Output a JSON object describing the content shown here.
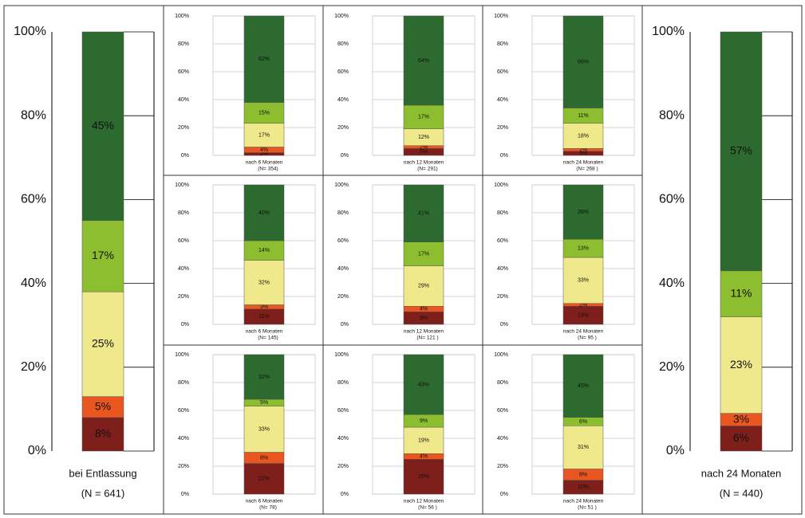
{
  "chart_data": [
    {
      "type": "stacked-bar",
      "categories": [
        "bei Entlassung"
      ],
      "xlabel": "(N = 641)",
      "ylim": [
        0,
        100
      ],
      "yticks": [
        {
          "value": 0,
          "label": "0%"
        },
        {
          "value": 20,
          "label": "20%"
        },
        {
          "value": 40,
          "label": "40%"
        },
        {
          "value": 60,
          "label": "60%"
        },
        {
          "value": 80,
          "label": "80%"
        },
        {
          "value": 100,
          "label": "100%"
        }
      ],
      "series": [
        {
          "color": "#7e1f1b",
          "values": [
            8
          ],
          "value_labels": [
            "8%"
          ]
        },
        {
          "color": "#e9561f",
          "values": [
            5
          ],
          "value_labels": [
            "5%"
          ]
        },
        {
          "color": "#efe98c",
          "values": [
            25
          ],
          "value_labels": [
            "25%"
          ]
        },
        {
          "color": "#8dbe2f",
          "values": [
            17
          ],
          "value_labels": [
            "17%"
          ]
        },
        {
          "color": "#2c6a2f",
          "values": [
            45
          ],
          "value_labels": [
            "45%"
          ]
        }
      ]
    },
    {
      "type": "stacked-bar",
      "categories": [
        "nach 6 Monaten"
      ],
      "xlabel": "(N= 354)",
      "ylim": [
        0,
        100
      ],
      "yticks": [
        {
          "value": 0,
          "label": "0%"
        },
        {
          "value": 20,
          "label": "20%"
        },
        {
          "value": 40,
          "label": "40%"
        },
        {
          "value": 60,
          "label": "60%"
        },
        {
          "value": 80,
          "label": "80%"
        },
        {
          "value": 100,
          "label": "100%"
        }
      ],
      "series": [
        {
          "color": "#7e1f1b",
          "values": [
            2
          ],
          "value_labels": [
            "2%"
          ]
        },
        {
          "color": "#e9561f",
          "values": [
            4
          ],
          "value_labels": [
            "4%"
          ]
        },
        {
          "color": "#efe98c",
          "values": [
            17
          ],
          "value_labels": [
            "17%"
          ]
        },
        {
          "color": "#8dbe2f",
          "values": [
            15
          ],
          "value_labels": [
            "15%"
          ]
        },
        {
          "color": "#2c6a2f",
          "values": [
            62
          ],
          "value_labels": [
            "62%"
          ]
        }
      ]
    },
    {
      "type": "stacked-bar",
      "categories": [
        "nach 12 Monaten"
      ],
      "xlabel": "(N= 291)",
      "ylim": [
        0,
        100
      ],
      "yticks": [
        {
          "value": 0,
          "label": "0%"
        },
        {
          "value": 20,
          "label": "20%"
        },
        {
          "value": 40,
          "label": "40%"
        },
        {
          "value": 60,
          "label": "60%"
        },
        {
          "value": 80,
          "label": "80%"
        },
        {
          "value": 100,
          "label": "100%"
        }
      ],
      "series": [
        {
          "color": "#7e1f1b",
          "values": [
            5
          ],
          "value_labels": [
            "5%"
          ]
        },
        {
          "color": "#e9561f",
          "values": [
            2
          ],
          "value_labels": [
            "2%"
          ]
        },
        {
          "color": "#efe98c",
          "values": [
            12
          ],
          "value_labels": [
            "12%"
          ]
        },
        {
          "color": "#8dbe2f",
          "values": [
            17
          ],
          "value_labels": [
            "17%"
          ]
        },
        {
          "color": "#2c6a2f",
          "values": [
            64
          ],
          "value_labels": [
            "64%"
          ]
        }
      ]
    },
    {
      "type": "stacked-bar",
      "categories": [
        "nach 24 Monaten"
      ],
      "xlabel": "(N= 268 )",
      "ylim": [
        0,
        100
      ],
      "yticks": [
        {
          "value": 0,
          "label": "0%"
        },
        {
          "value": 20,
          "label": "20%"
        },
        {
          "value": 40,
          "label": "40%"
        },
        {
          "value": 60,
          "label": "60%"
        },
        {
          "value": 80,
          "label": "80%"
        },
        {
          "value": 100,
          "label": "100%"
        }
      ],
      "series": [
        {
          "color": "#7e1f1b",
          "values": [
            3
          ],
          "value_labels": [
            "3%"
          ]
        },
        {
          "color": "#e9561f",
          "values": [
            2
          ],
          "value_labels": [
            "2%"
          ]
        },
        {
          "color": "#efe98c",
          "values": [
            18
          ],
          "value_labels": [
            "18%"
          ]
        },
        {
          "color": "#8dbe2f",
          "values": [
            11
          ],
          "value_labels": [
            "11%"
          ]
        },
        {
          "color": "#2c6a2f",
          "values": [
            66
          ],
          "value_labels": [
            "66%"
          ]
        }
      ]
    },
    {
      "type": "stacked-bar",
      "categories": [
        "nach 6 Monaten"
      ],
      "xlabel": "(N= 145)",
      "ylim": [
        0,
        100
      ],
      "yticks": [
        {
          "value": 0,
          "label": "0%"
        },
        {
          "value": 20,
          "label": "20%"
        },
        {
          "value": 40,
          "label": "40%"
        },
        {
          "value": 60,
          "label": "60%"
        },
        {
          "value": 80,
          "label": "80%"
        },
        {
          "value": 100,
          "label": "100%"
        }
      ],
      "series": [
        {
          "color": "#7e1f1b",
          "values": [
            11
          ],
          "value_labels": [
            "11%"
          ]
        },
        {
          "color": "#e9561f",
          "values": [
            3
          ],
          "value_labels": [
            "3%"
          ]
        },
        {
          "color": "#efe98c",
          "values": [
            32
          ],
          "value_labels": [
            "32%"
          ]
        },
        {
          "color": "#8dbe2f",
          "values": [
            14
          ],
          "value_labels": [
            "14%"
          ]
        },
        {
          "color": "#2c6a2f",
          "values": [
            40
          ],
          "value_labels": [
            "40%"
          ]
        }
      ]
    },
    {
      "type": "stacked-bar",
      "categories": [
        "nach 12 Monaten"
      ],
      "xlabel": "(N= 121 )",
      "ylim": [
        0,
        100
      ],
      "yticks": [
        {
          "value": 0,
          "label": "0%"
        },
        {
          "value": 20,
          "label": "20%"
        },
        {
          "value": 40,
          "label": "40%"
        },
        {
          "value": 60,
          "label": "60%"
        },
        {
          "value": 80,
          "label": "80%"
        },
        {
          "value": 100,
          "label": "100%"
        }
      ],
      "series": [
        {
          "color": "#7e1f1b",
          "values": [
            9
          ],
          "value_labels": [
            "9%"
          ]
        },
        {
          "color": "#e9561f",
          "values": [
            4
          ],
          "value_labels": [
            "4%"
          ]
        },
        {
          "color": "#efe98c",
          "values": [
            29
          ],
          "value_labels": [
            "29%"
          ]
        },
        {
          "color": "#8dbe2f",
          "values": [
            17
          ],
          "value_labels": [
            "17%"
          ]
        },
        {
          "color": "#2c6a2f",
          "values": [
            41
          ],
          "value_labels": [
            "41%"
          ]
        }
      ]
    },
    {
      "type": "stacked-bar",
      "categories": [
        "nach 24 Monaten"
      ],
      "xlabel": "(N= 95 )",
      "ylim": [
        0,
        100
      ],
      "yticks": [
        {
          "value": 0,
          "label": "0%"
        },
        {
          "value": 20,
          "label": "20%"
        },
        {
          "value": 40,
          "label": "40%"
        },
        {
          "value": 60,
          "label": "60%"
        },
        {
          "value": 80,
          "label": "80%"
        },
        {
          "value": 100,
          "label": "100%"
        }
      ],
      "series": [
        {
          "color": "#7e1f1b",
          "values": [
            13
          ],
          "value_labels": [
            "13%"
          ]
        },
        {
          "color": "#e9561f",
          "values": [
            2
          ],
          "value_labels": [
            "2%"
          ]
        },
        {
          "color": "#efe98c",
          "values": [
            33
          ],
          "value_labels": [
            "33%"
          ]
        },
        {
          "color": "#8dbe2f",
          "values": [
            13
          ],
          "value_labels": [
            "13%"
          ]
        },
        {
          "color": "#2c6a2f",
          "values": [
            39
          ],
          "value_labels": [
            "39%"
          ]
        }
      ]
    },
    {
      "type": "stacked-bar",
      "categories": [
        "nach 6 Monaten"
      ],
      "xlabel": "(N= 78)",
      "ylim": [
        0,
        100
      ],
      "yticks": [
        {
          "value": 0,
          "label": "0%"
        },
        {
          "value": 20,
          "label": "20%"
        },
        {
          "value": 40,
          "label": "40%"
        },
        {
          "value": 60,
          "label": "60%"
        },
        {
          "value": 80,
          "label": "80%"
        },
        {
          "value": 100,
          "label": "100%"
        }
      ],
      "series": [
        {
          "color": "#7e1f1b",
          "values": [
            22
          ],
          "value_labels": [
            "22%"
          ]
        },
        {
          "color": "#e9561f",
          "values": [
            8
          ],
          "value_labels": [
            "8%"
          ]
        },
        {
          "color": "#efe98c",
          "values": [
            33
          ],
          "value_labels": [
            "33%"
          ]
        },
        {
          "color": "#8dbe2f",
          "values": [
            5
          ],
          "value_labels": [
            "5%"
          ]
        },
        {
          "color": "#2c6a2f",
          "values": [
            32
          ],
          "value_labels": [
            "32%"
          ]
        }
      ]
    },
    {
      "type": "stacked-bar",
      "categories": [
        "nach 12 Monaten"
      ],
      "xlabel": "(N= 56 )",
      "ylim": [
        0,
        100
      ],
      "yticks": [
        {
          "value": 0,
          "label": "0%"
        },
        {
          "value": 20,
          "label": "20%"
        },
        {
          "value": 40,
          "label": "40%"
        },
        {
          "value": 60,
          "label": "60%"
        },
        {
          "value": 80,
          "label": "80%"
        },
        {
          "value": 100,
          "label": "100%"
        }
      ],
      "series": [
        {
          "color": "#7e1f1b",
          "values": [
            25
          ],
          "value_labels": [
            "25%"
          ]
        },
        {
          "color": "#e9561f",
          "values": [
            4
          ],
          "value_labels": [
            "4%"
          ]
        },
        {
          "color": "#efe98c",
          "values": [
            19
          ],
          "value_labels": [
            "19%"
          ]
        },
        {
          "color": "#8dbe2f",
          "values": [
            9
          ],
          "value_labels": [
            "9%"
          ]
        },
        {
          "color": "#2c6a2f",
          "values": [
            43
          ],
          "value_labels": [
            "43%"
          ]
        }
      ]
    },
    {
      "type": "stacked-bar",
      "categories": [
        "nach 24 Monaten"
      ],
      "xlabel": "(N= 51 )",
      "ylim": [
        0,
        100
      ],
      "yticks": [
        {
          "value": 0,
          "label": "0%"
        },
        {
          "value": 20,
          "label": "20%"
        },
        {
          "value": 40,
          "label": "40%"
        },
        {
          "value": 60,
          "label": "60%"
        },
        {
          "value": 80,
          "label": "80%"
        },
        {
          "value": 100,
          "label": "100%"
        }
      ],
      "series": [
        {
          "color": "#7e1f1b",
          "values": [
            10
          ],
          "value_labels": [
            "10%"
          ]
        },
        {
          "color": "#e9561f",
          "values": [
            8
          ],
          "value_labels": [
            "8%"
          ]
        },
        {
          "color": "#efe98c",
          "values": [
            31
          ],
          "value_labels": [
            "31%"
          ]
        },
        {
          "color": "#8dbe2f",
          "values": [
            6
          ],
          "value_labels": [
            "6%"
          ]
        },
        {
          "color": "#2c6a2f",
          "values": [
            45
          ],
          "value_labels": [
            "45%"
          ]
        }
      ]
    },
    {
      "type": "stacked-bar",
      "categories": [
        "nach 24 Monaten"
      ],
      "xlabel": "(N = 440)",
      "ylim": [
        0,
        100
      ],
      "yticks": [
        {
          "value": 0,
          "label": "0%"
        },
        {
          "value": 20,
          "label": "20%"
        },
        {
          "value": 40,
          "label": "40%"
        },
        {
          "value": 60,
          "label": "60%"
        },
        {
          "value": 80,
          "label": "80%"
        },
        {
          "value": 100,
          "label": "100%"
        }
      ],
      "series": [
        {
          "color": "#7e1f1b",
          "values": [
            6
          ],
          "value_labels": [
            "6%"
          ]
        },
        {
          "color": "#e9561f",
          "values": [
            3
          ],
          "value_labels": [
            "3%"
          ]
        },
        {
          "color": "#efe98c",
          "values": [
            23
          ],
          "value_labels": [
            "23%"
          ]
        },
        {
          "color": "#8dbe2f",
          "values": [
            11
          ],
          "value_labels": [
            "11%"
          ]
        },
        {
          "color": "#2c6a2f",
          "values": [
            57
          ],
          "value_labels": [
            "57%"
          ]
        }
      ]
    }
  ]
}
